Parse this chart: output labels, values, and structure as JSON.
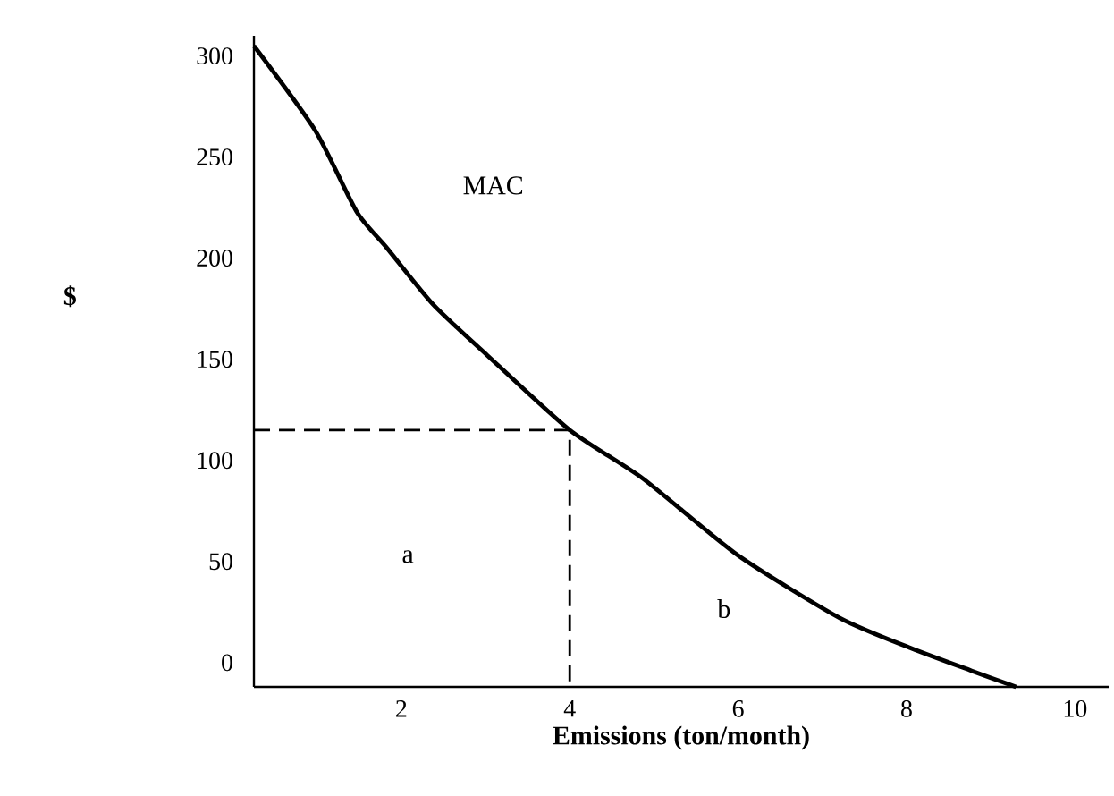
{
  "chart_data": {
    "type": "line",
    "xlabel": "Emissions (ton/month)",
    "ylabel": "$",
    "xlim": [
      0.25,
      10.4
    ],
    "ylim": [
      -12,
      310
    ],
    "xticks": [
      2,
      4,
      6,
      8,
      10
    ],
    "yticks": [
      0,
      50,
      100,
      150,
      200,
      250,
      300
    ],
    "series": [
      {
        "color": "#000000",
        "line_style": "solid",
        "x": [
          0.25,
          0.98,
          1.47,
          1.83,
          2.38,
          3.02,
          4,
          4.87,
          6.0,
          7.21,
          8.06,
          8.77,
          9.3
        ],
        "values": [
          305,
          263,
          223,
          205,
          177,
          152,
          115,
          91,
          53,
          22,
          7,
          -4,
          -12
        ]
      },
      {
        "color": "#000000",
        "line_style": "dashed",
        "x": [
          0.25,
          4,
          4
        ],
        "values": [
          115,
          115,
          -12
        ]
      }
    ],
    "annotations": [
      "MAC",
      "a",
      "b"
    ],
    "grid": false,
    "marker": "none"
  }
}
